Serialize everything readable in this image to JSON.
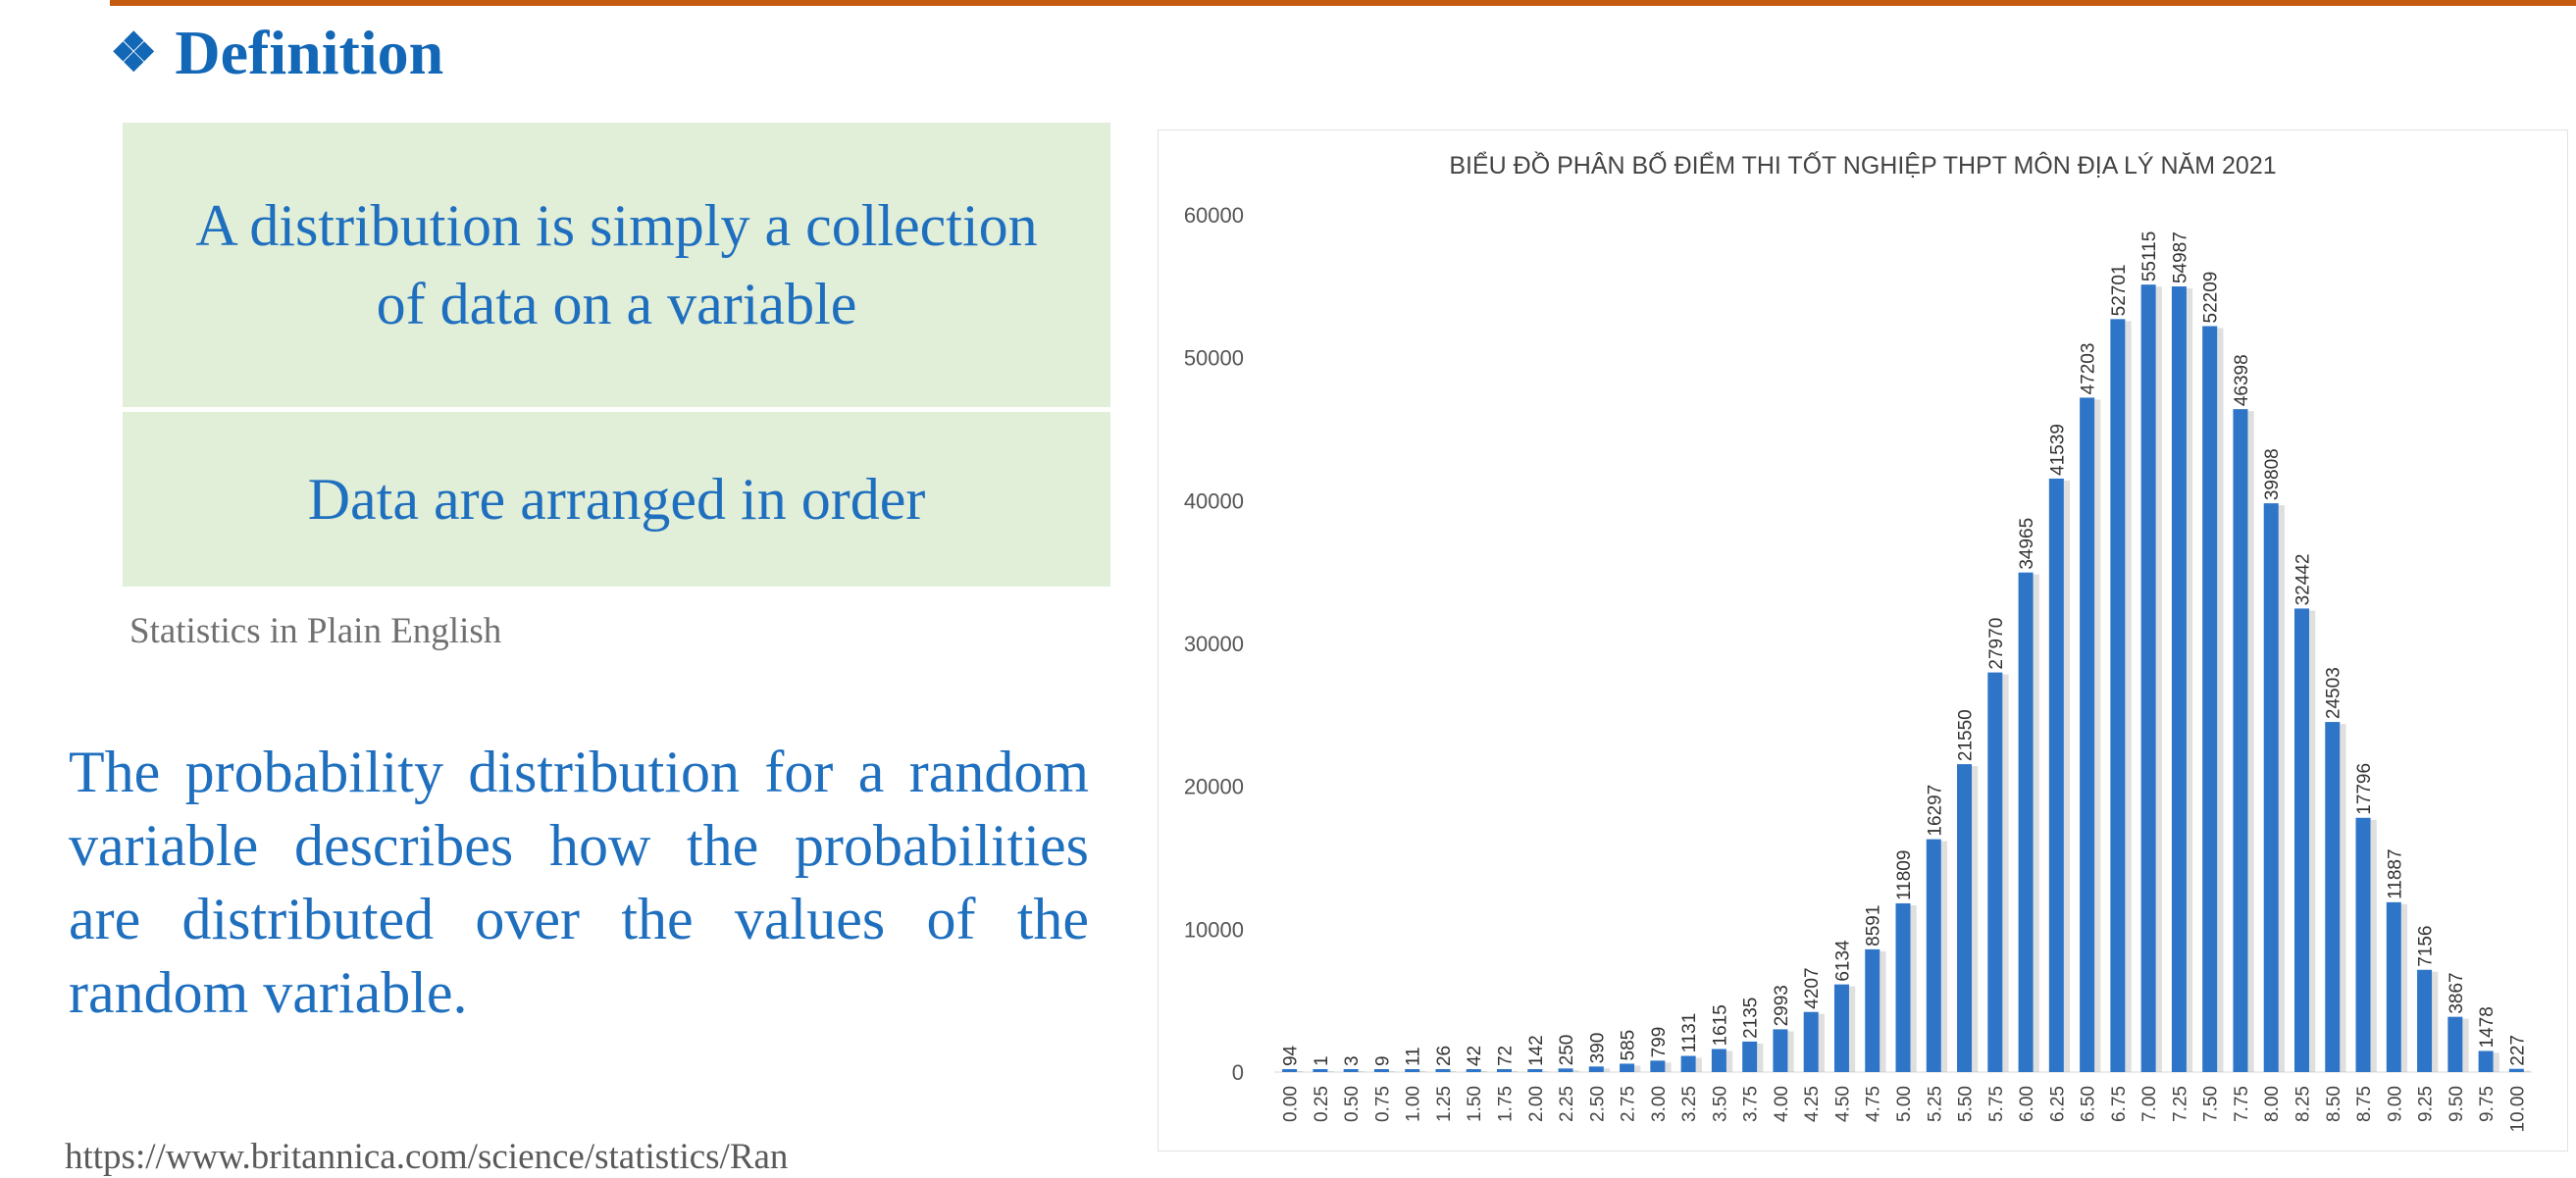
{
  "colors": {
    "accent_rule": "#c55a11",
    "heading": "#1267b6",
    "box_fill": "#e1eed8",
    "text_blue": "#1f6fbf",
    "bar": "#2e75c8"
  },
  "header": {
    "icon": "four-diamond-icon",
    "icon_glyph": "❖",
    "title": "Definition"
  },
  "definition_box_1": {
    "text": "A distribution is simply a collection of data on a variable"
  },
  "definition_box_2": {
    "text": "Data are arranged in order"
  },
  "source_note": "Statistics in Plain English",
  "paragraph": "The probability distribution for a random variable describes how the probabilities are distributed over the values of the random variable.",
  "url": "https://www.britannica.com/science/statistics/Ran",
  "chart_data": {
    "type": "bar",
    "title": "BIỂU ĐỒ PHÂN BỐ ĐIỂM THI TỐT NGHIỆP THPT MÔN ĐỊA LÝ NĂM 2021",
    "xlabel": "",
    "ylabel": "",
    "ylim": [
      0,
      60000
    ],
    "yticks": [
      0,
      10000,
      20000,
      30000,
      40000,
      50000,
      60000
    ],
    "grid": false,
    "legend": "none",
    "data_labels": true,
    "categories": [
      "0.00",
      "0.25",
      "0.50",
      "0.75",
      "1.00",
      "1.25",
      "1.50",
      "1.75",
      "2.00",
      "2.25",
      "2.50",
      "2.75",
      "3.00",
      "3.25",
      "3.50",
      "3.75",
      "4.00",
      "4.25",
      "4.50",
      "4.75",
      "5.00",
      "5.25",
      "5.50",
      "5.75",
      "6.00",
      "6.25",
      "6.50",
      "6.75",
      "7.00",
      "7.25",
      "7.50",
      "7.75",
      "8.00",
      "8.25",
      "8.50",
      "8.75",
      "9.00",
      "9.25",
      "9.50",
      "9.75",
      "10.00"
    ],
    "values": [
      94,
      1,
      3,
      9,
      11,
      26,
      42,
      72,
      142,
      250,
      390,
      585,
      799,
      1131,
      1615,
      2135,
      2993,
      4207,
      6134,
      8591,
      11809,
      16297,
      21550,
      27970,
      34965,
      41539,
      47203,
      52701,
      55115,
      54987,
      52209,
      46398,
      39808,
      32442,
      24503,
      17796,
      11887,
      7156,
      3867,
      1478,
      227
    ]
  }
}
